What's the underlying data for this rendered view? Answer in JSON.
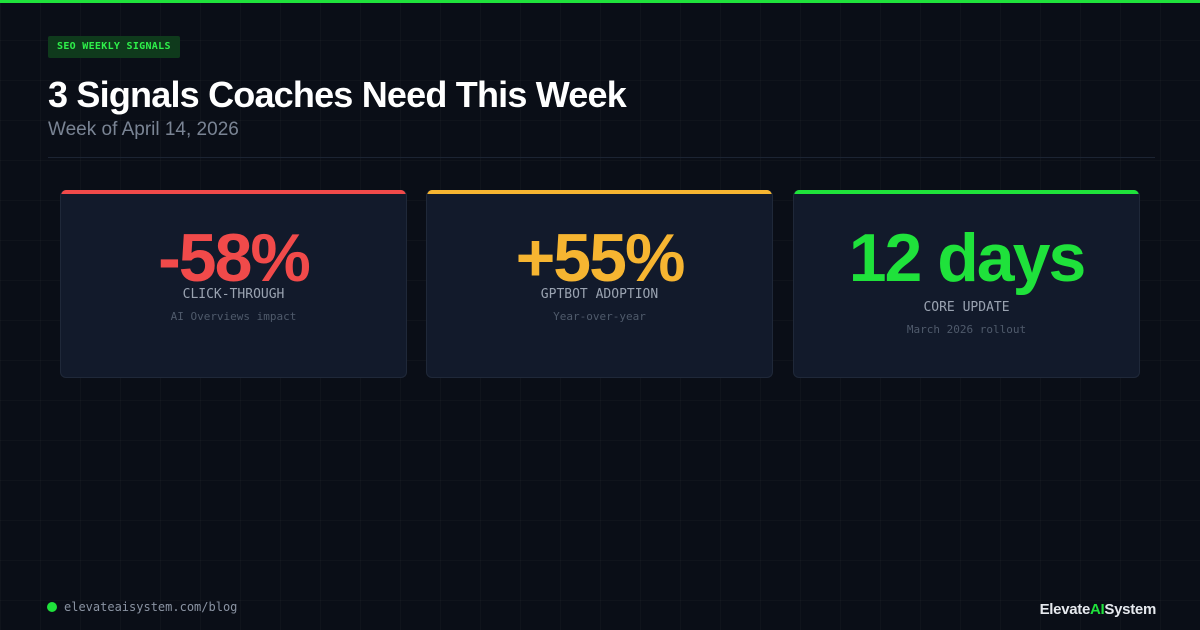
{
  "header": {
    "badge": "SEO WEEKLY SIGNALS",
    "title": "3 Signals Coaches Need This Week",
    "subtitle": "Week of April 14, 2026"
  },
  "cards": [
    {
      "value": "-58%",
      "label": "CLICK-THROUGH",
      "note": "AI Overviews impact",
      "color": "#f14a4a"
    },
    {
      "value": "+55%",
      "label": "GPTBOT ADOPTION",
      "note": "Year-over-year",
      "color": "#f6b531"
    },
    {
      "value": "12 days",
      "label": "CORE UPDATE",
      "note": "March 2026 rollout",
      "color": "#1fe23b"
    }
  ],
  "footer": {
    "url": "elevateaisystem.com/blog",
    "brand": [
      "Elevate",
      "AI",
      "System"
    ]
  }
}
